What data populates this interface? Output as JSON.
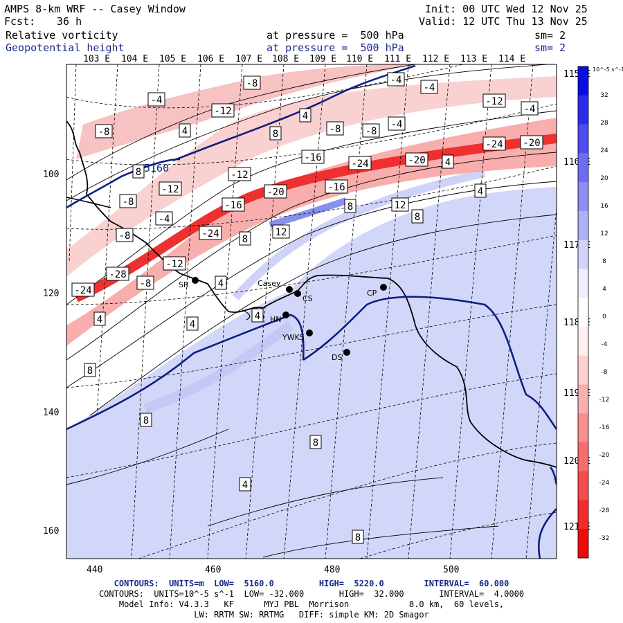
{
  "header": {
    "title": "AMPS 8-km WRF -- Casey Window",
    "fcst_label": "Fcst:",
    "fcst_value": "36 h",
    "init": "Init: 00 UTC Wed 12 Nov 25",
    "valid": "Valid: 12 UTC Thu 13 Nov 25",
    "field1_name": "Relative vorticity",
    "field1_level": "at pressure =  500 hPa",
    "field1_sm": "sm= 2",
    "field2_name": "Geopotential height",
    "field2_level": "at pressure =  500 hPa",
    "field2_sm": "sm= 2"
  },
  "map": {
    "top_lon_labels": [
      "103 E",
      "104 E",
      "105 E",
      "106 E",
      "107 E",
      "108 E",
      "109 E",
      "110 E",
      "111 E",
      "112 E",
      "113 E",
      "114 E"
    ],
    "right_lon_labels": [
      "115 E",
      "116 E",
      "117 E",
      "118 E",
      "119 E",
      "120 E",
      "121 E"
    ],
    "y_ticks": [
      "100",
      "120",
      "140",
      "160"
    ],
    "x_ticks": [
      "440",
      "460",
      "480",
      "500"
    ],
    "stations": [
      {
        "name": "SR"
      },
      {
        "name": "Casey"
      },
      {
        "name": "CS"
      },
      {
        "name": "CP"
      },
      {
        "name": "HN"
      },
      {
        "name": "YWKS"
      },
      {
        "name": "DS"
      }
    ],
    "height_label": "5160",
    "vort_labels": [
      "-4",
      "-8",
      "-4",
      "-4",
      "4",
      "8",
      "-8",
      "-12",
      "-8",
      "-8",
      "-4",
      "4",
      "-12",
      "-4",
      "-16",
      "-24",
      "-20",
      "4",
      "8",
      "-12",
      "-12",
      "-20",
      "-16",
      "-24",
      "-20",
      "-16",
      "-8",
      "-8",
      "-4",
      "-24",
      "8",
      "12",
      "-12",
      "-28",
      "-8",
      "4",
      "-24",
      "4",
      "4",
      "4",
      "12",
      "8",
      "4",
      "8",
      "8",
      "8",
      "8",
      "4",
      "8"
    ],
    "colorbar": {
      "unit": "10^-5 s^-1",
      "labels": [
        "32",
        "28",
        "24",
        "20",
        "16",
        "12",
        "8",
        "4",
        "0",
        "-4",
        "-8",
        "-12",
        "-16",
        "-20",
        "-24",
        "-28",
        "-32"
      ],
      "colors": [
        "#0a0ae6",
        "#2b2bf0",
        "#4c4cf2",
        "#6d6df4",
        "#8e8ef6",
        "#b0b0f8",
        "#d2d2fa",
        "#eeeefd",
        "#ffffff",
        "#ffeeee",
        "#fdd0d0",
        "#fbb0b0",
        "#f98e8e",
        "#f76d6d",
        "#f54c4c",
        "#f32b2b",
        "#f00a0a"
      ]
    }
  },
  "footer": {
    "line1": "CONTOURS:  UNITS=m  LOW=  5160.0         HIGH=  5220.0        INTERVAL=  60.000",
    "line2": "CONTOURS:  UNITS=10^-5 s^-1  LOW= -32.000       HIGH=  32.000       INTERVAL=  4.0000",
    "line3": "Model Info: V4.3.3   KF      MYJ PBL  Morrison            8.0 km,  60 levels,",
    "line4": "LW: RRTM SW: RRTMG   DIFF: simple KM: 2D Smagor"
  }
}
